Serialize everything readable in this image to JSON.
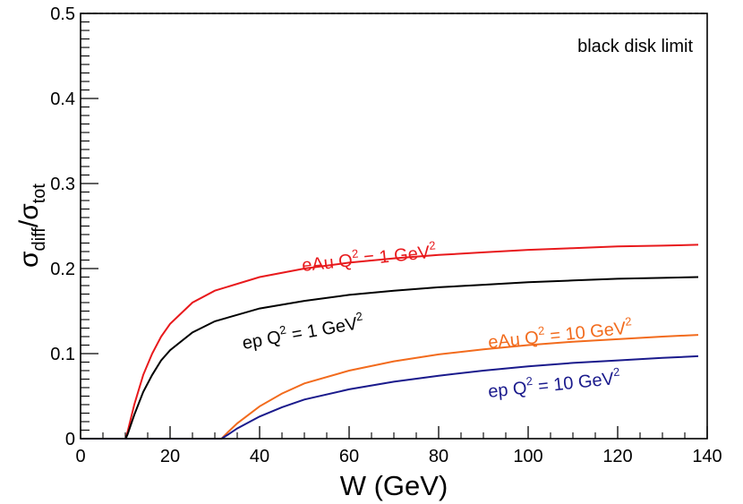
{
  "chart_data": {
    "type": "line",
    "xlabel": "W (GeV)",
    "ylabel": {
      "main": "σ",
      "sub1": "diff",
      "slash": "/σ",
      "sub2": "tot"
    },
    "xlim": [
      0,
      140
    ],
    "ylim": [
      0,
      0.5
    ],
    "x_ticks": [
      0,
      20,
      40,
      60,
      80,
      100,
      120,
      140
    ],
    "y_ticks": [
      0,
      0.1,
      0.2,
      0.3,
      0.4,
      0.5
    ],
    "y_tick_labels": [
      "0",
      "0.1",
      "0.2",
      "0.3",
      "0.4",
      "0.5"
    ],
    "reference_line": {
      "y": 0.5,
      "label": "black disk limit",
      "style": "dashed",
      "color": "#000000"
    },
    "series": [
      {
        "name": "eAu Q2 = 1 GeV2",
        "label": {
          "prefix": "eAu  Q",
          "sup1": "2",
          "mid": " = 1 GeV",
          "sup2": "2"
        },
        "color": "#e8191c",
        "x": [
          0,
          10.1,
          10.5,
          12,
          14,
          16,
          18,
          20,
          25,
          30,
          40,
          50,
          60,
          70,
          80,
          90,
          100,
          110,
          120,
          130,
          138
        ],
        "y": [
          0,
          0,
          0.008,
          0.04,
          0.075,
          0.1,
          0.12,
          0.135,
          0.16,
          0.174,
          0.19,
          0.2,
          0.207,
          0.212,
          0.216,
          0.219,
          0.222,
          0.224,
          0.226,
          0.227,
          0.228
        ]
      },
      {
        "name": "ep Q2 = 1 GeV2",
        "label": {
          "prefix": "ep  Q",
          "sup1": "2",
          "mid": " = 1 GeV",
          "sup2": "2"
        },
        "color": "#000000",
        "x": [
          0,
          10.1,
          10.5,
          12,
          14,
          16,
          18,
          20,
          25,
          30,
          40,
          50,
          60,
          70,
          80,
          90,
          100,
          110,
          120,
          130,
          138
        ],
        "y": [
          0,
          0,
          0.005,
          0.028,
          0.055,
          0.075,
          0.092,
          0.104,
          0.125,
          0.138,
          0.153,
          0.162,
          0.169,
          0.174,
          0.178,
          0.181,
          0.184,
          0.186,
          0.188,
          0.189,
          0.19
        ]
      },
      {
        "name": "eAu Q2 = 10 GeV2",
        "label": {
          "prefix": "eAu  Q",
          "sup1": "2",
          "mid": " = 10 GeV",
          "sup2": "2"
        },
        "color": "#f26b1d",
        "x": [
          0,
          31.5,
          33,
          35,
          40,
          45,
          50,
          60,
          70,
          80,
          90,
          100,
          110,
          120,
          130,
          138
        ],
        "y": [
          0,
          0,
          0.008,
          0.018,
          0.038,
          0.053,
          0.065,
          0.08,
          0.091,
          0.099,
          0.105,
          0.11,
          0.114,
          0.117,
          0.12,
          0.122
        ]
      },
      {
        "name": "ep Q2 = 10 GeV2",
        "label": {
          "prefix": "ep  Q",
          "sup1": "2",
          "mid": " = 10 GeV",
          "sup2": "2"
        },
        "color": "#1a1a8c",
        "x": [
          0,
          31.5,
          33,
          35,
          40,
          45,
          50,
          60,
          70,
          80,
          90,
          100,
          110,
          120,
          130,
          138
        ],
        "y": [
          0,
          0,
          0.005,
          0.012,
          0.026,
          0.037,
          0.046,
          0.058,
          0.067,
          0.074,
          0.08,
          0.085,
          0.089,
          0.092,
          0.095,
          0.097
        ]
      }
    ]
  }
}
